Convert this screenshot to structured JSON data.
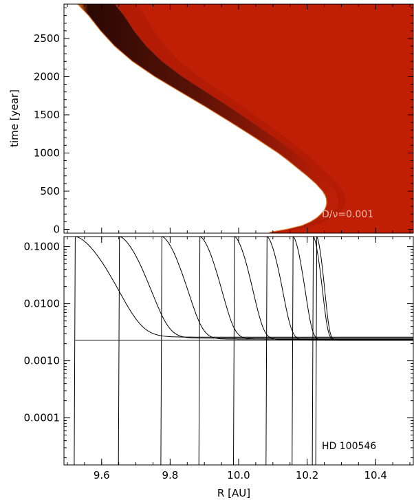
{
  "chart_data": [
    {
      "type": "heatmap",
      "ylabel": "time [year]",
      "xlim": [
        9.49,
        10.51
      ],
      "ylim": [
        -50,
        2950
      ],
      "yticks": [
        0,
        500,
        1000,
        1500,
        2000,
        2500
      ],
      "ytick_labels": [
        "0",
        "500",
        "1000",
        "1500",
        "2000",
        "2500"
      ],
      "annotation": "D/ν=0.001",
      "colors": {
        "field": "#c11e06",
        "empty": "#ffffff",
        "front": "#2a0803"
      },
      "front_boundary": {
        "t": [
          -40,
          0,
          50,
          100,
          150,
          200,
          250,
          300,
          350,
          400,
          450,
          500,
          600,
          700,
          800,
          900,
          1000,
          1200,
          1400,
          1600,
          1800,
          2000,
          2200,
          2400,
          2600,
          2800,
          2950
        ],
        "r": [
          10.09,
          10.14,
          10.185,
          10.21,
          10.228,
          10.24,
          10.25,
          10.255,
          10.257,
          10.256,
          10.252,
          10.245,
          10.225,
          10.2,
          10.172,
          10.145,
          10.115,
          10.048,
          9.978,
          9.905,
          9.83,
          9.755,
          9.69,
          9.638,
          9.597,
          9.562,
          9.53
        ]
      },
      "front_width": [
        0.012,
        0.018,
        0.022,
        0.025,
        0.028,
        0.03,
        0.032,
        0.033,
        0.034,
        0.035,
        0.036,
        0.037,
        0.039,
        0.041,
        0.044,
        0.047,
        0.05,
        0.056,
        0.062,
        0.068,
        0.074,
        0.08,
        0.086,
        0.092,
        0.097,
        0.103,
        0.108
      ]
    },
    {
      "type": "line",
      "xlabel": "R [AU]",
      "ylabel": "",
      "yscale": "log",
      "xlim": [
        9.49,
        10.51
      ],
      "ylim": [
        1.5e-05,
        0.15
      ],
      "xticks": [
        9.6,
        9.8,
        10.0,
        10.2,
        10.4
      ],
      "xtick_labels": [
        "9.6",
        "9.8",
        "10.0",
        "10.2",
        "10.4"
      ],
      "yticks": [
        0.0001,
        0.001,
        0.01,
        0.1
      ],
      "ytick_labels": [
        "0.0001",
        "0.0010",
        "0.0100",
        "0.1000"
      ],
      "annotation": "HD 100546",
      "baseline": 0.0023,
      "series": [
        {
          "front": 9.523,
          "decay": 0.075,
          "plateau": 0.0026
        },
        {
          "front": 9.652,
          "decay": 0.055,
          "plateau": 0.0025
        },
        {
          "front": 9.776,
          "decay": 0.045,
          "plateau": 0.0024
        },
        {
          "front": 9.887,
          "decay": 0.038,
          "plateau": 0.0024
        },
        {
          "front": 9.988,
          "decay": 0.032,
          "plateau": 0.00235
        },
        {
          "front": 10.083,
          "decay": 0.027,
          "plateau": 0.0023
        },
        {
          "front": 10.159,
          "decay": 0.021,
          "plateau": 0.0023
        },
        {
          "front": 10.218,
          "decay": 0.016,
          "plateau": 0.0023
        },
        {
          "front": 10.228,
          "decay": 0.014,
          "plateau": 0.0023
        }
      ]
    }
  ]
}
